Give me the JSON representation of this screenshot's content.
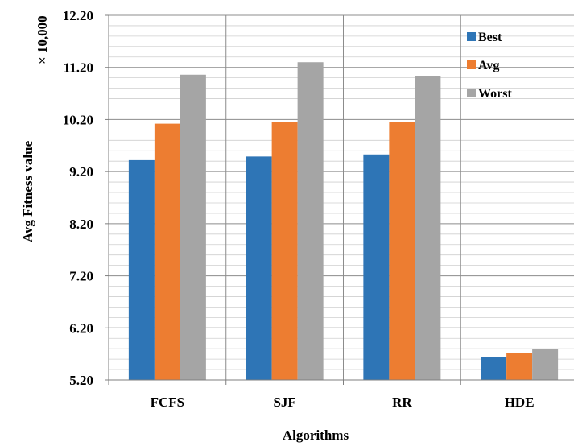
{
  "chart_data": {
    "type": "bar",
    "categories": [
      "FCFS",
      "SJF",
      "RR",
      "HDE"
    ],
    "series": [
      {
        "name": "Best",
        "values": [
          9.42,
          9.49,
          9.53,
          5.64
        ]
      },
      {
        "name": "Avg",
        "values": [
          10.12,
          10.16,
          10.16,
          5.72
        ]
      },
      {
        "name": "Worst",
        "values": [
          11.06,
          11.3,
          11.04,
          5.8
        ]
      }
    ],
    "colors": [
      "#2e75b6",
      "#ed7d31",
      "#a5a5a5"
    ],
    "xlabel": "Algorithms",
    "ylabel": "Avg Fitness value",
    "yscale_note": "× 10,000",
    "ylim": [
      5.2,
      12.2
    ],
    "yticks": [
      "5.20",
      "6.20",
      "7.20",
      "8.20",
      "9.20",
      "10.20",
      "11.20",
      "12.20"
    ],
    "minor_gridlines": true,
    "category_separators": true,
    "legend_position": "top-right"
  }
}
